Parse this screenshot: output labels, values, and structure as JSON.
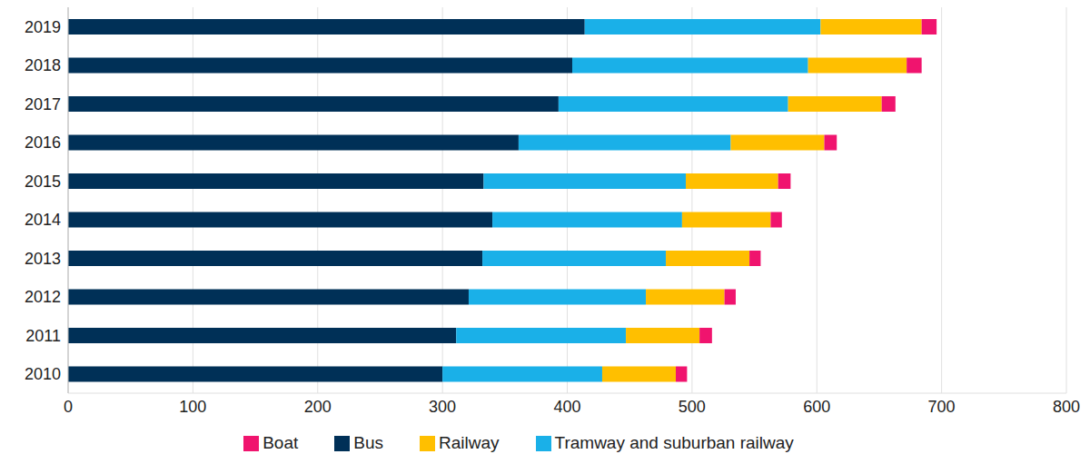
{
  "chart_data": {
    "type": "bar",
    "orientation": "horizontal",
    "stacked": true,
    "grid": true,
    "legend": "bottom",
    "categories": [
      "2010",
      "2011",
      "2012",
      "2013",
      "2014",
      "2015",
      "2016",
      "2017",
      "2018",
      "2019"
    ],
    "series": [
      {
        "name": "Bus",
        "color": "#003057",
        "values": [
          300,
          311,
          321,
          332,
          340,
          333,
          361,
          393,
          404,
          414
        ]
      },
      {
        "name": "Tramway and suburban railway",
        "color": "#1ab0e8",
        "values": [
          128,
          136,
          142,
          147,
          152,
          162,
          170,
          184,
          189,
          189
        ]
      },
      {
        "name": "Railway",
        "color": "#ffbf00",
        "values": [
          59,
          59,
          63,
          67,
          71,
          74,
          75,
          75,
          79,
          81
        ]
      },
      {
        "name": "Boat",
        "color": "#f0146e",
        "values": [
          9,
          10,
          9,
          9,
          9,
          10,
          10,
          11,
          12,
          12
        ]
      }
    ],
    "xlim": [
      0,
      800
    ],
    "xticks": [
      0,
      100,
      200,
      300,
      400,
      500,
      600,
      700,
      800
    ]
  }
}
